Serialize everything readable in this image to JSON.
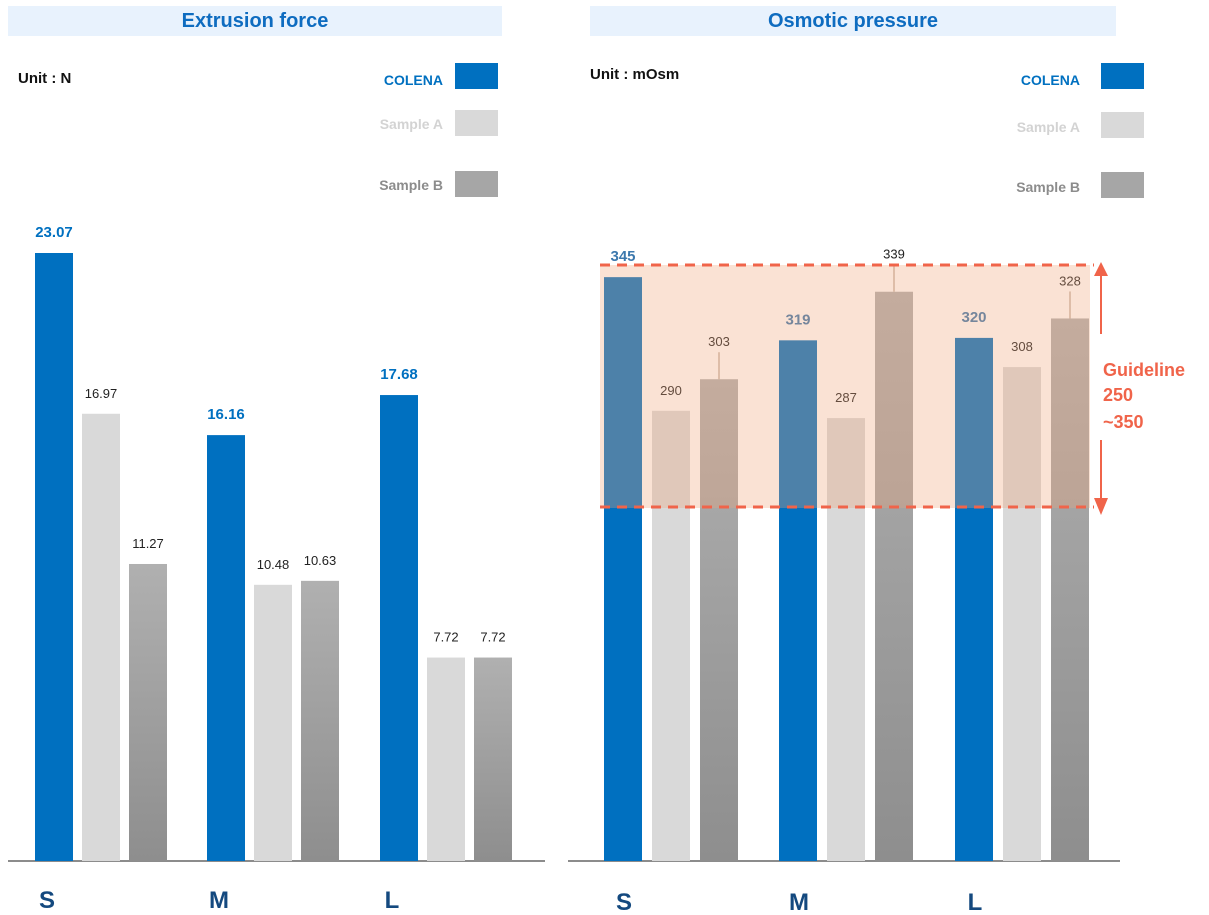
{
  "left_panel": {
    "title": "Extrusion force",
    "unit": "Unit : N",
    "legend": [
      "COLENA",
      "Sample A",
      "Sample B"
    ]
  },
  "right_panel": {
    "title": "Osmotic pressure",
    "unit": "Unit : mOsm",
    "legend": [
      "COLENA",
      "Sample A",
      "Sample B"
    ],
    "guideline": {
      "line1": "Guideline",
      "line2": "250",
      "line3": "~350"
    }
  },
  "colors": {
    "colena": "#0070c0",
    "sample_a": "#d9d9d9",
    "sample_b": "#a6a6a6",
    "guideline": "#f0644a",
    "title_bg": "#e8f2fd"
  },
  "chart_data": [
    {
      "type": "bar",
      "title": "Extrusion force",
      "categories": [
        "S",
        "M",
        "L"
      ],
      "series": [
        {
          "name": "COLENA",
          "values": [
            23.07,
            16.16,
            17.68
          ],
          "labels": [
            "23.07",
            "16.16",
            "17.68"
          ]
        },
        {
          "name": "Sample A",
          "values": [
            16.97,
            10.48,
            7.72
          ],
          "labels": [
            "16.97",
            "10.48",
            "7.72"
          ]
        },
        {
          "name": "Sample B",
          "values": [
            11.27,
            10.63,
            7.72
          ],
          "labels": [
            "11.27",
            "10.63",
            "7.72"
          ]
        }
      ],
      "ylim": [
        0,
        23.07
      ],
      "grid": false,
      "legend": "top-right"
    },
    {
      "type": "bar",
      "title": "Osmotic pressure",
      "categories": [
        "S",
        "M",
        "L"
      ],
      "series": [
        {
          "name": "COLENA",
          "values": [
            345,
            319,
            320
          ],
          "labels": [
            "345",
            "319",
            "320"
          ]
        },
        {
          "name": "Sample A",
          "values": [
            290,
            287,
            308
          ],
          "labels": [
            "290",
            "287",
            "308"
          ]
        },
        {
          "name": "Sample B",
          "values": [
            303,
            339,
            328
          ],
          "labels": [
            "303",
            "339",
            "328"
          ]
        }
      ],
      "guideline_band": [
        250,
        350
      ],
      "grid": false,
      "legend": "top-right"
    }
  ]
}
